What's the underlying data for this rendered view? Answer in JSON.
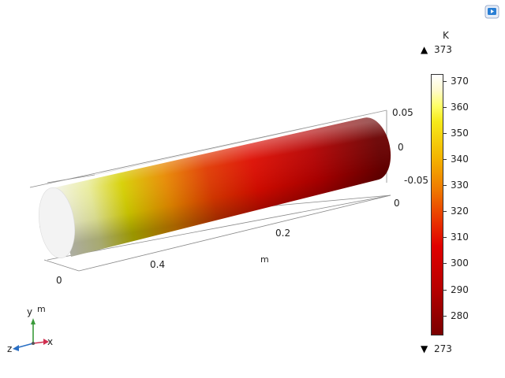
{
  "toolbar": {
    "export_icon": "image-export-icon"
  },
  "axes": {
    "z_values": [
      "0.05",
      "0",
      "-0.05"
    ],
    "y_origin": "0",
    "x_ticks": [
      "0.2",
      "0.4"
    ],
    "x_origin": "0",
    "unit_label": "m"
  },
  "colorbar": {
    "unit": "K",
    "max_label": "373",
    "min_label": "273",
    "ticks": [
      "370",
      "360",
      "350",
      "340",
      "330",
      "320",
      "310",
      "300",
      "290",
      "280"
    ]
  },
  "triad": {
    "unit": "m",
    "y": "y",
    "x": "x",
    "z": "z"
  },
  "colors": {
    "accent": "#2a7fd4",
    "x_axis": "#d03050",
    "y_axis": "#3a9a3a",
    "z_axis": "#2a6fc4"
  }
}
